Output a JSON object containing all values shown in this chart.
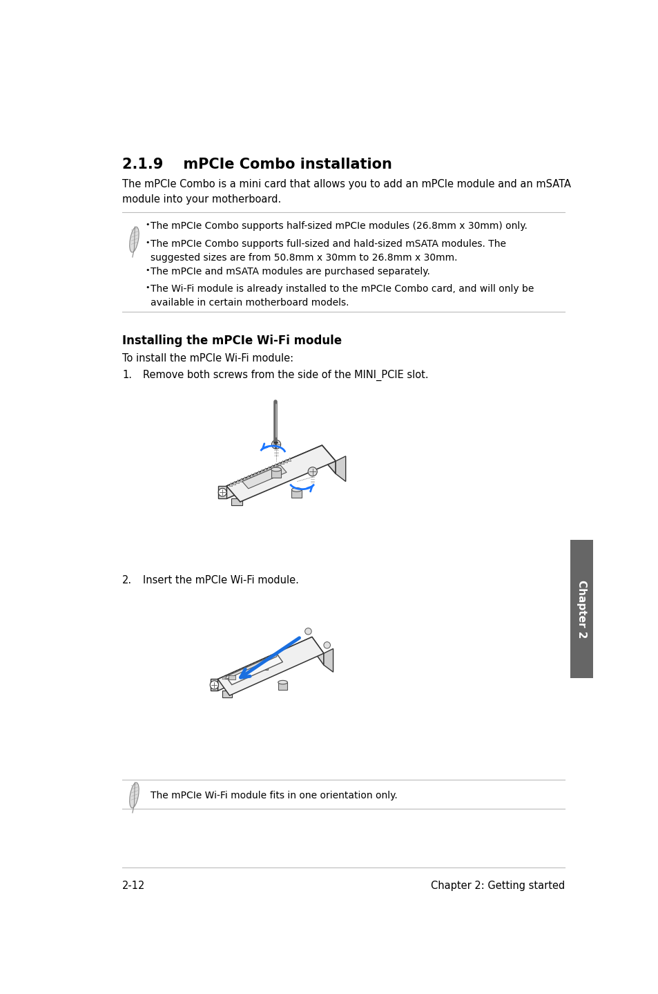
{
  "bg_color": "#ffffff",
  "text_color": "#000000",
  "line_color": "#bbbbbb",
  "sidebar_bg": "#666666",
  "sidebar_text_color": "#ffffff",
  "section_number": "2.1.9",
  "section_title": "mPCIe Combo installation",
  "section_title_fontsize": 15,
  "intro_text": "The mPCIe Combo is a mini card that allows you to add an mPCIe module and an mSATA\nmodule into your motherboard.",
  "intro_fontsize": 10.5,
  "note_bullets": [
    "The mPCIe Combo supports half-sized mPCIe modules (26.8mm x 30mm) only.",
    "The mPCIe Combo supports full-sized and hald-sized mSATA modules. The\nsuggested sizes are from 50.8mm x 30mm to 26.8mm x 30mm.",
    "The mPCIe and mSATA modules are purchased separately.",
    "The Wi-Fi module is already installed to the mPCIe Combo card, and will only be\navailable in certain motherboard models."
  ],
  "note_fontsize": 10.0,
  "subsection_title": "Installing the mPCIe Wi-Fi module",
  "subsection_fontsize": 12,
  "step_intro": "To install the mPCIe Wi-Fi module:",
  "step_intro_fontsize": 10.5,
  "step1_num": "1.",
  "step1_text": "Remove both screws from the side of the MINI_PCIE slot.",
  "step1_fontsize": 10.5,
  "step2_num": "2.",
  "step2_text": "Insert the mPCIe Wi-Fi module.",
  "step2_fontsize": 10.5,
  "note2_text": "The mPCIe Wi-Fi module fits in one orientation only.",
  "note2_fontsize": 10.0,
  "footer_left": "2-12",
  "footer_right": "Chapter 2: Getting started",
  "footer_fontsize": 10.5,
  "sidebar_text": "Chapter 2",
  "sidebar_fontsize": 11
}
